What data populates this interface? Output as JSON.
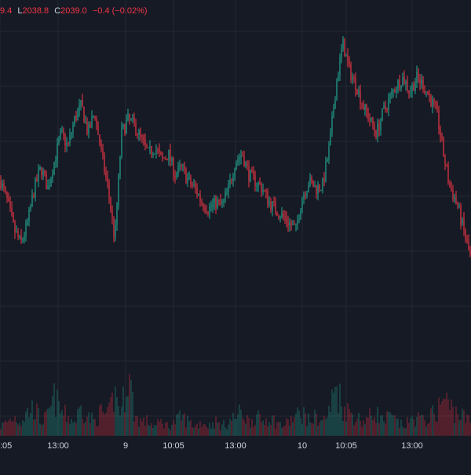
{
  "legend": {
    "partial_value": "9.4",
    "low_label": "L",
    "low_value": "2038.8",
    "close_label": "C",
    "close_value": "2039.0",
    "change": "−0.4 (−0.02%)"
  },
  "colors": {
    "background": "#161a25",
    "grid": "#242833",
    "up": "#22ab94",
    "down": "#f23645",
    "axis_text": "#d1d4dc"
  },
  "chart_data": {
    "type": "candlestick",
    "x_tick_labels": [
      ":05",
      "13:00",
      "9",
      "10:05",
      "13:00",
      "10",
      "10:05",
      "13:00"
    ],
    "close_path": [
      2052,
      2046,
      2038,
      2034,
      2040,
      2050,
      2056,
      2050,
      2058,
      2066,
      2062,
      2070,
      2074,
      2066,
      2072,
      2060,
      2050,
      2035,
      2066,
      2070,
      2068,
      2064,
      2060,
      2062,
      2058,
      2060,
      2054,
      2056,
      2052,
      2050,
      2046,
      2044,
      2046,
      2045,
      2050,
      2058,
      2060,
      2054,
      2052,
      2050,
      2046,
      2044,
      2042,
      2040,
      2038,
      2048,
      2052,
      2050,
      2051,
      2062,
      2080,
      2092,
      2084,
      2080,
      2074,
      2070,
      2066,
      2072,
      2076,
      2080,
      2082,
      2078,
      2082,
      2080,
      2076,
      2072,
      2060,
      2050,
      2046,
      2038,
      2030
    ],
    "volume_path": [
      2,
      3,
      4,
      3,
      5,
      6,
      3,
      4,
      8,
      5,
      4,
      3,
      6,
      4,
      3,
      5,
      4,
      9,
      5,
      14,
      4,
      3,
      3,
      2,
      3,
      2,
      3,
      4,
      3,
      2,
      3,
      2,
      3,
      2,
      3,
      4,
      5,
      3,
      4,
      3,
      4,
      3,
      2,
      3,
      4,
      5,
      3,
      4,
      3,
      5,
      11,
      6,
      5,
      4,
      3,
      4,
      5,
      3,
      4,
      3,
      2,
      3,
      4,
      3,
      4,
      5,
      8,
      6,
      5,
      4,
      3
    ],
    "grid": true,
    "legend_position": "top-left"
  }
}
